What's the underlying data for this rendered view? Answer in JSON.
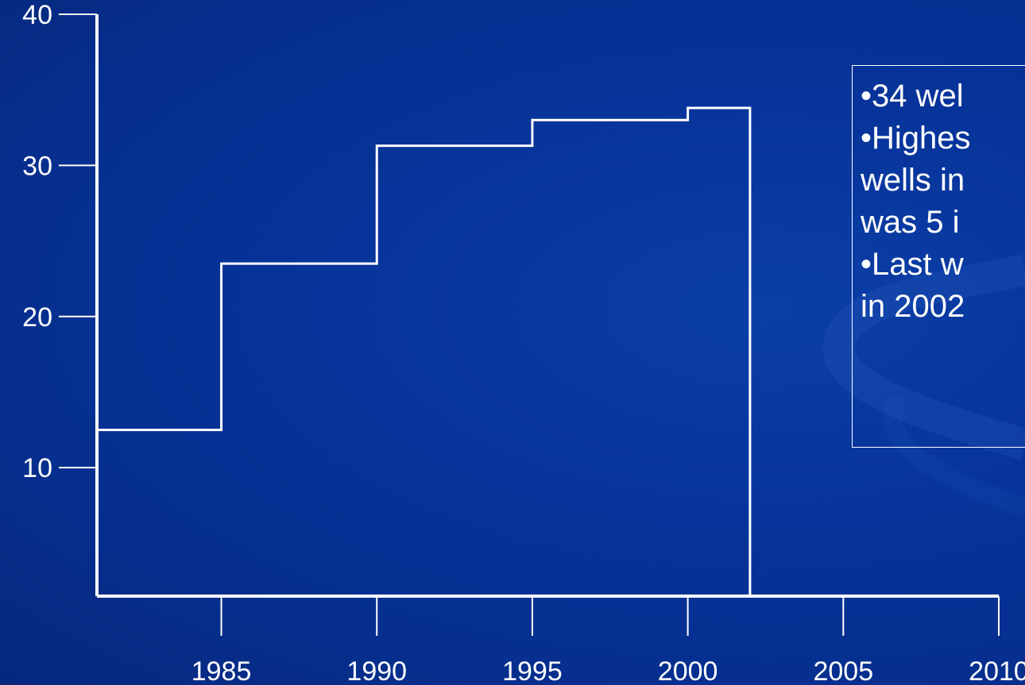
{
  "chart_data": {
    "type": "line",
    "step": "post",
    "x": [
      1981,
      1985,
      1990,
      1995,
      2000,
      2002
    ],
    "values": [
      12.5,
      23.5,
      31.3,
      33,
      33.8,
      1.5
    ],
    "xlim": [
      1981,
      2010
    ],
    "ylim": [
      1.5,
      40
    ],
    "xticks": [
      "1985",
      "1990",
      "1995",
      "2000",
      "2005",
      "2010"
    ],
    "yticks": [
      "10",
      "20",
      "30",
      "40"
    ],
    "grid": false,
    "legend": "none",
    "line_color": "#ffffff",
    "background_color": "#07359c"
  },
  "annotation": {
    "lines": [
      "•34 wel",
      "•Highes",
      "wells in",
      "was 5 i",
      "•Last w",
      "in 2002"
    ]
  }
}
